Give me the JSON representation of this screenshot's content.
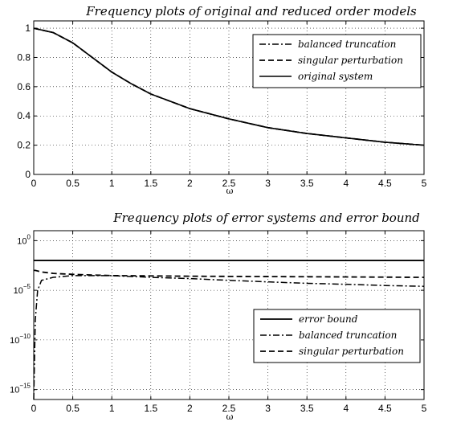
{
  "chart_data": [
    {
      "type": "line",
      "title": "Frequency plots of original and reduced order models",
      "xlabel": "ω",
      "ylabel": "",
      "xlim": [
        0,
        5
      ],
      "ylim": [
        0,
        1.05
      ],
      "yscale": "linear",
      "grid": true,
      "legend_position": "top-right",
      "x_ticks": [
        0,
        0.5,
        1,
        1.5,
        2,
        2.5,
        3,
        3.5,
        4,
        4.5,
        5
      ],
      "x_tick_labels": [
        "0",
        "0.5",
        "1",
        "1.5",
        "2",
        "2.5",
        "3",
        "3.5",
        "4",
        "4.5",
        "5"
      ],
      "y_ticks": [
        0,
        0.2,
        0.4,
        0.6,
        0.8,
        1
      ],
      "y_tick_labels": [
        "0",
        "0.2",
        "0.4",
        "0.6",
        "0.8",
        "1"
      ],
      "x": [
        0,
        0.25,
        0.5,
        0.75,
        1,
        1.25,
        1.5,
        2,
        2.5,
        3,
        3.5,
        4,
        4.5,
        5
      ],
      "series": [
        {
          "name": "balanced truncation",
          "style": "dashdot",
          "width": 1.5,
          "values": [
            1.0,
            0.97,
            0.9,
            0.8,
            0.7,
            0.62,
            0.55,
            0.45,
            0.38,
            0.32,
            0.28,
            0.25,
            0.22,
            0.2
          ]
        },
        {
          "name": "singular perturbation",
          "style": "dashed",
          "width": 1.8,
          "values": [
            1.0,
            0.97,
            0.9,
            0.8,
            0.7,
            0.62,
            0.55,
            0.45,
            0.38,
            0.32,
            0.28,
            0.25,
            0.22,
            0.2
          ]
        },
        {
          "name": "original system",
          "style": "solid",
          "width": 1.6,
          "values": [
            1.0,
            0.97,
            0.9,
            0.8,
            0.7,
            0.62,
            0.55,
            0.45,
            0.38,
            0.32,
            0.28,
            0.25,
            0.22,
            0.2
          ]
        }
      ]
    },
    {
      "type": "line",
      "title": "Frequency plots of error systems and error bound",
      "xlabel": "ω",
      "ylabel": "",
      "xlim": [
        0,
        5
      ],
      "ylim": [
        1e-16,
        10
      ],
      "yscale": "log",
      "grid": true,
      "legend_position": "lower-right",
      "x_ticks": [
        0,
        0.5,
        1,
        1.5,
        2,
        2.5,
        3,
        3.5,
        4,
        4.5,
        5
      ],
      "x_tick_labels": [
        "0",
        "0.5",
        "1",
        "1.5",
        "2",
        "2.5",
        "3",
        "3.5",
        "4",
        "4.5",
        "5"
      ],
      "y_ticks": [
        1e-15,
        1e-10,
        1e-05,
        1
      ],
      "y_tick_labels": [
        {
          "base": "10",
          "exp": "−15"
        },
        {
          "base": "10",
          "exp": "−10"
        },
        {
          "base": "10",
          "exp": "−5"
        },
        {
          "base": "10",
          "exp": "0"
        }
      ],
      "series": [
        {
          "name": "error bound",
          "style": "solid",
          "width": 1.8,
          "x": [
            0,
            5
          ],
          "values": [
            0.01,
            0.01
          ]
        },
        {
          "name": "balanced truncation",
          "style": "dashdot",
          "width": 1.5,
          "x": [
            0,
            0.02,
            0.05,
            0.1,
            0.25,
            0.5,
            1,
            1.5,
            2,
            2.5,
            3,
            3.5,
            4,
            4.5,
            5
          ],
          "values": [
            1e-16,
            1e-08,
            1e-05,
            0.0001,
            0.0002,
            0.0003,
            0.0003,
            0.0002,
            0.00015,
            0.0001,
            7e-05,
            5e-05,
            4e-05,
            3e-05,
            2.5e-05
          ]
        },
        {
          "name": "singular perturbation",
          "style": "dashed",
          "width": 1.8,
          "x": [
            0,
            0.02,
            0.1,
            0.25,
            0.5,
            1,
            1.5,
            2,
            2.5,
            3,
            3.5,
            4,
            4.5,
            5
          ],
          "values": [
            0.001,
            0.001,
            0.0007,
            0.0005,
            0.0004,
            0.0003,
            0.00028,
            0.00026,
            0.00025,
            0.00024,
            0.00023,
            0.00022,
            0.00021,
            0.0002
          ]
        }
      ]
    }
  ]
}
